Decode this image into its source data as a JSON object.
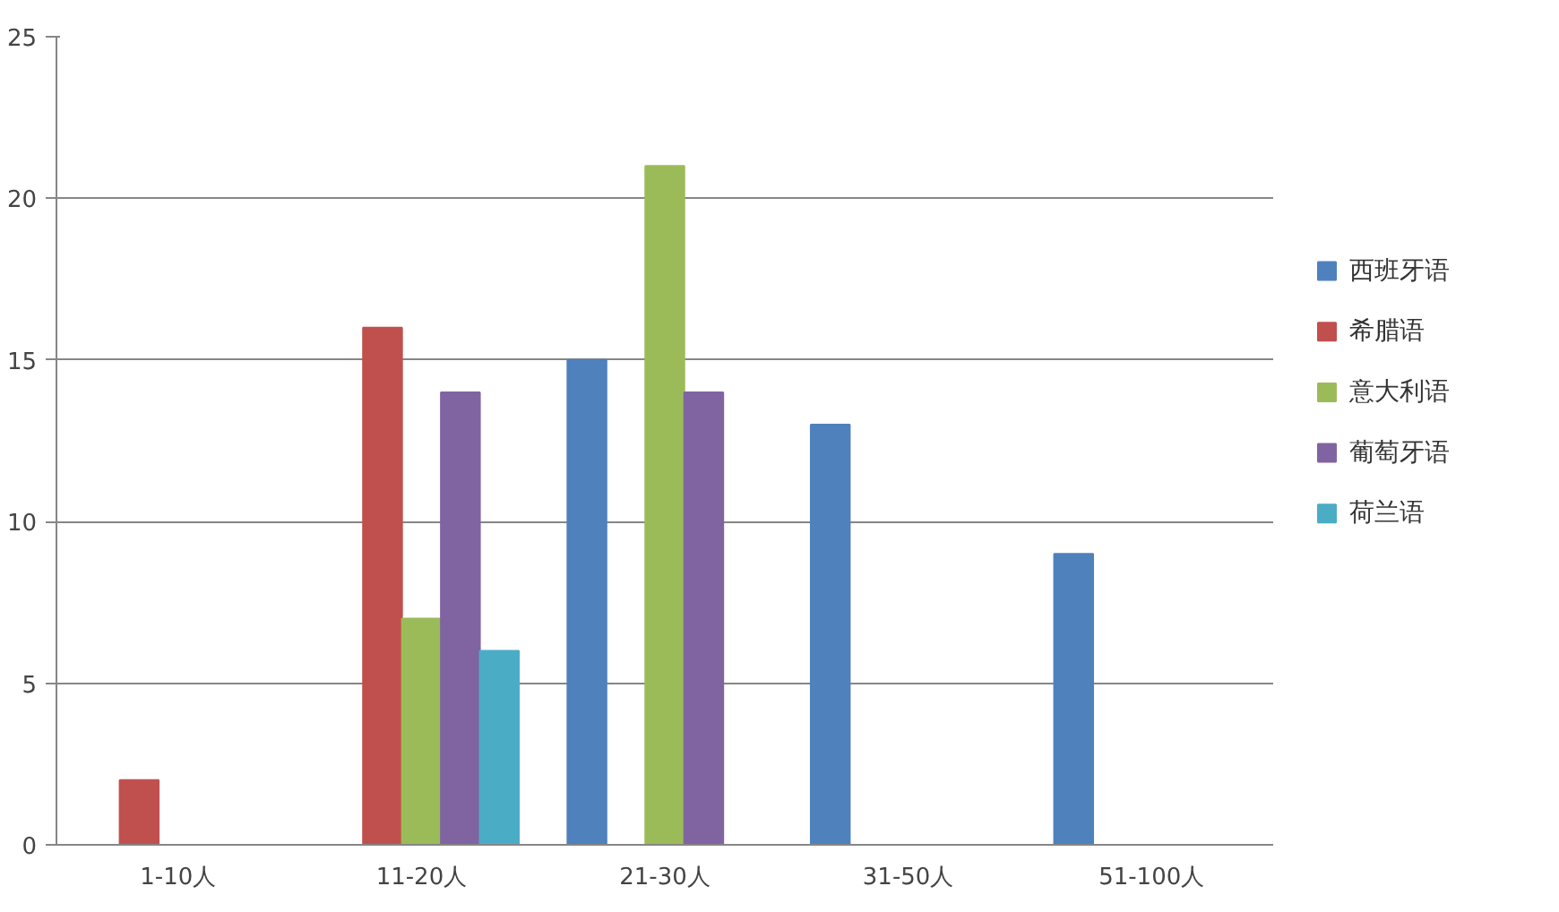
{
  "chart_data": {
    "type": "bar",
    "categories": [
      "1-10人",
      "11-20人",
      "21-30人",
      "31-50人",
      "51-100人"
    ],
    "series": [
      {
        "name": "西班牙语",
        "color": "#4f81bd",
        "values": [
          null,
          null,
          15,
          13,
          9
        ]
      },
      {
        "name": "希腊语",
        "color": "#c0504d",
        "values": [
          2,
          16,
          null,
          null,
          null
        ]
      },
      {
        "name": "意大利语",
        "color": "#9bbb59",
        "values": [
          null,
          7,
          21,
          null,
          null
        ]
      },
      {
        "name": "葡萄牙语",
        "color": "#8064a2",
        "values": [
          null,
          14,
          14,
          null,
          null
        ]
      },
      {
        "name": "荷兰语",
        "color": "#4bacc6",
        "values": [
          null,
          6,
          null,
          null,
          null
        ]
      }
    ],
    "ylim": [
      0,
      25
    ],
    "yticks": [
      0,
      5,
      10,
      15,
      20,
      25
    ],
    "grid": "y",
    "legend": "right"
  }
}
